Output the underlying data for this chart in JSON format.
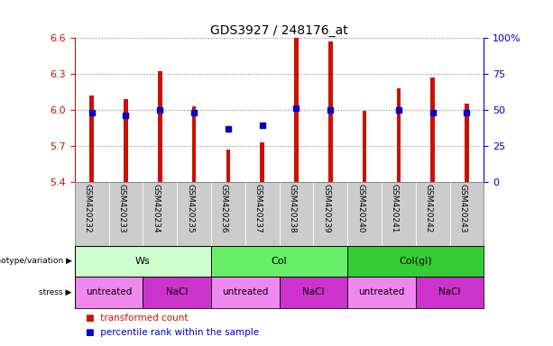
{
  "title": "GDS3927 / 248176_at",
  "samples": [
    "GSM420232",
    "GSM420233",
    "GSM420234",
    "GSM420235",
    "GSM420236",
    "GSM420237",
    "GSM420238",
    "GSM420239",
    "GSM420240",
    "GSM420241",
    "GSM420242",
    "GSM420243"
  ],
  "red_values": [
    6.12,
    6.09,
    6.32,
    6.03,
    5.67,
    5.73,
    6.6,
    6.57,
    5.99,
    6.18,
    6.27,
    6.05
  ],
  "blue_values": [
    0.48,
    0.46,
    0.5,
    0.48,
    0.37,
    0.39,
    0.51,
    0.5,
    null,
    0.5,
    0.48,
    0.48
  ],
  "y_min": 5.4,
  "y_max": 6.6,
  "y_ticks_left": [
    5.4,
    5.7,
    6.0,
    6.3,
    6.6
  ],
  "y_ticks_right_vals": [
    0,
    25,
    50,
    75,
    100
  ],
  "y_ticks_right_labels": [
    "0",
    "25",
    "50",
    "75",
    "100%"
  ],
  "genotype_groups": [
    {
      "label": "Ws",
      "start": 0,
      "end": 4,
      "color": "#ccffcc"
    },
    {
      "label": "Col",
      "start": 4,
      "end": 8,
      "color": "#66ee66"
    },
    {
      "label": "Col(gl)",
      "start": 8,
      "end": 12,
      "color": "#33cc33"
    }
  ],
  "stress_groups": [
    {
      "label": "untreated",
      "start": 0,
      "end": 2,
      "color": "#ee88ee"
    },
    {
      "label": "NaCl",
      "start": 2,
      "end": 4,
      "color": "#cc33cc"
    },
    {
      "label": "untreated",
      "start": 4,
      "end": 6,
      "color": "#ee88ee"
    },
    {
      "label": "NaCl",
      "start": 6,
      "end": 8,
      "color": "#cc33cc"
    },
    {
      "label": "untreated",
      "start": 8,
      "end": 10,
      "color": "#ee88ee"
    },
    {
      "label": "NaCl",
      "start": 10,
      "end": 12,
      "color": "#cc33cc"
    }
  ],
  "bar_color": "#cc1100",
  "blue_color": "#0000cc",
  "tick_label_color_left": "#cc1100",
  "tick_label_color_right": "#0000cc",
  "grid_color": "#888888",
  "sample_bg_color": "#cccccc",
  "bg_color": "#ffffff",
  "bar_width": 0.12,
  "blue_marker_size": 5
}
